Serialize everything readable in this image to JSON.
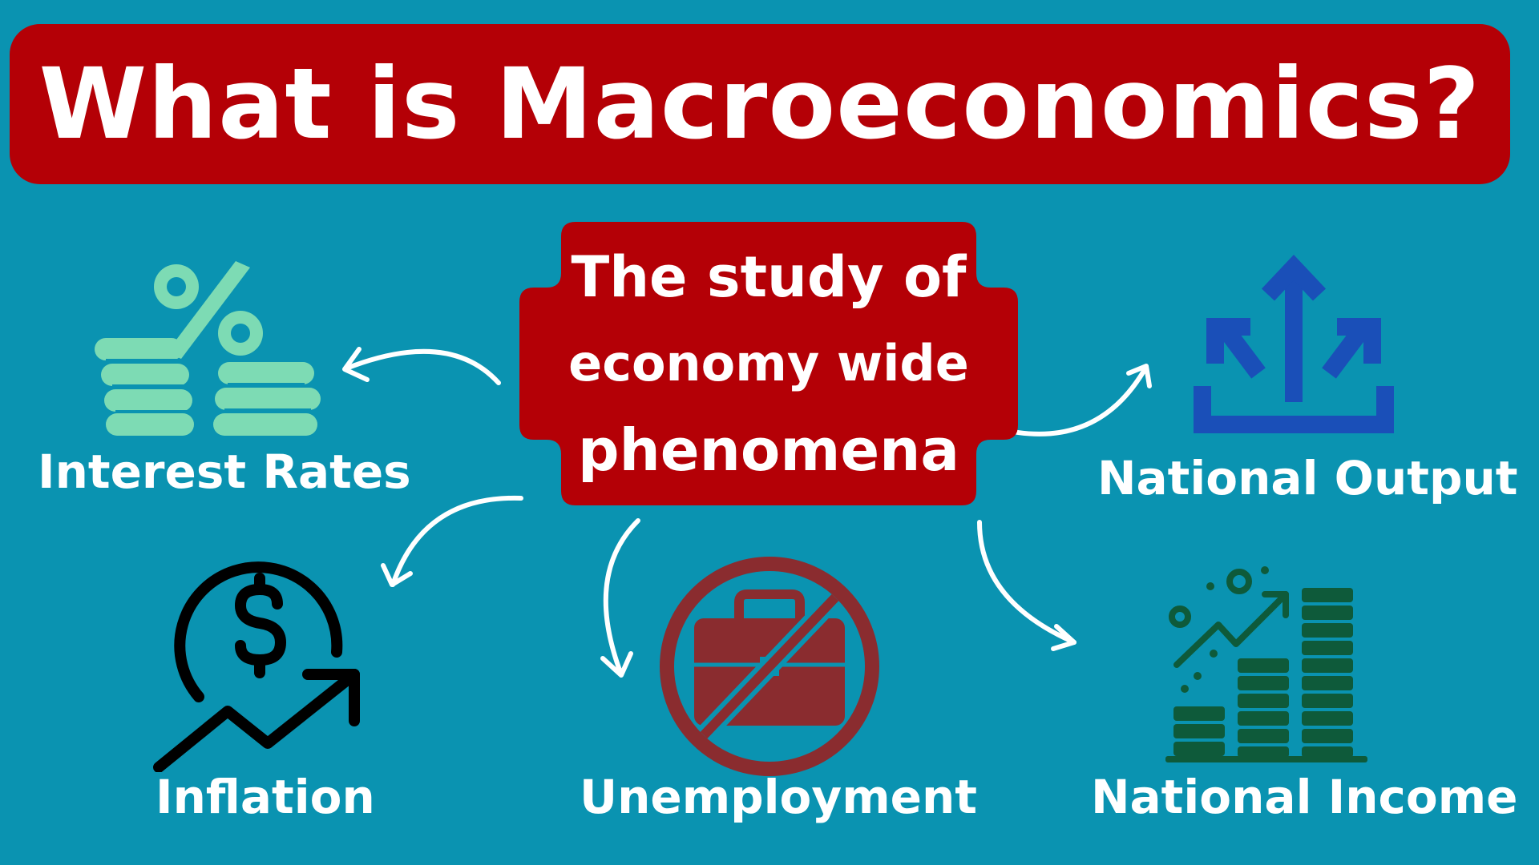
{
  "title": "What is Macroeconomics?",
  "center": {
    "lines": [
      "The study of",
      "economy wide",
      "phenomena"
    ]
  },
  "topics": {
    "interest_rates": {
      "label": "Interest Rates",
      "icon": "percent-coins-icon"
    },
    "national_output": {
      "label": "National Output",
      "icon": "output-arrows-icon"
    },
    "inflation": {
      "label": "Inflation",
      "icon": "dollar-trend-icon"
    },
    "unemployment": {
      "label": "Unemployment",
      "icon": "no-briefcase-icon"
    },
    "national_income": {
      "label": "National Income",
      "icon": "coin-growth-icon"
    }
  },
  "colors": {
    "background": "#0A93B1",
    "banner": "#B40006",
    "text": "#FFFFFF",
    "interest_icon": "#7DDBB4",
    "output_icon": "#1A4FB8",
    "unemployment_icon": "#8A2C2F",
    "income_icon": "#0E5A3A"
  }
}
